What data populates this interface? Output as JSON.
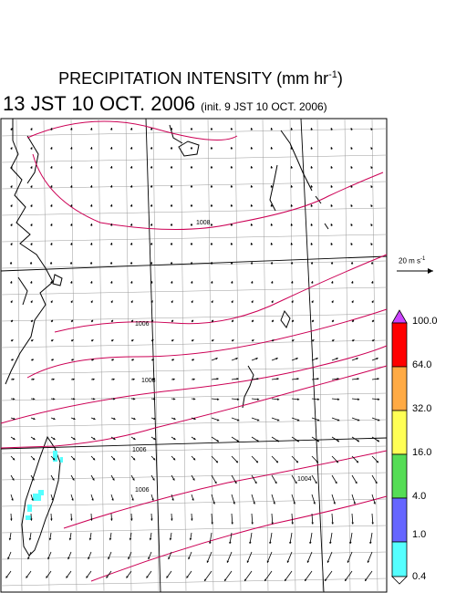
{
  "title": {
    "main": "PRECIPITATION INTENSITY (mm hr",
    "sup": "-1",
    "close": ")"
  },
  "subtitle": {
    "valid_time": "13 JST 10 OCT. 2006",
    "init_time": "(init. 9 JST 10 OCT. 2006)"
  },
  "wind_reference": {
    "label": "20 m s",
    "sup": "-1"
  },
  "colorbar": {
    "levels": [
      "100.0",
      "64.0",
      "32.0",
      "16.0",
      "4.0",
      "1.0",
      "0.4"
    ],
    "colors": [
      "#ff0000",
      "#ffaa44",
      "#ffff55",
      "#55dd55",
      "#6666ff",
      "#55ffff"
    ],
    "over_color": "#cc44ff"
  },
  "isobars": {
    "color": "#cc0055",
    "labels": [
      "1008",
      "1006",
      "1008",
      "1006",
      "1006",
      "1004"
    ]
  },
  "colors": {
    "coast": "#000000",
    "grid": "#999999",
    "wind_arrow": "#000000",
    "precip": "#55ffff"
  }
}
